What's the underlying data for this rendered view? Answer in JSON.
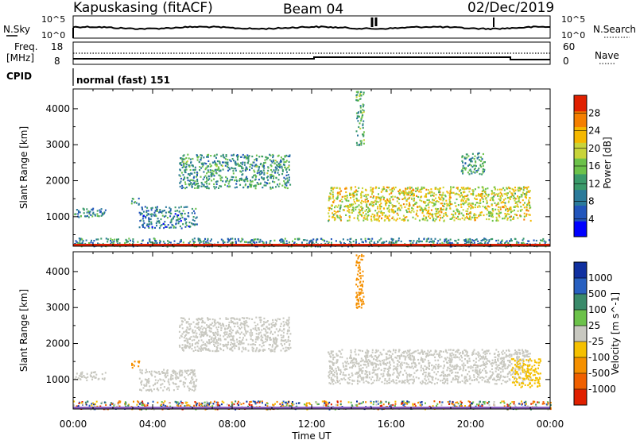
{
  "header": {
    "station": "Kapuskasing (fitACF)",
    "beam": "Beam 04",
    "date": "02/Dec/2019"
  },
  "noise_panel": {
    "left_label": "N.Sky",
    "right_label": "N.Search",
    "left_ticks": [
      "10^5",
      "10^0"
    ],
    "right_ticks": [
      "10^5",
      "10^0"
    ]
  },
  "freq_panel": {
    "left_label_1": "Freq.",
    "left_label_2": "[MHz]",
    "left_ticks": [
      "18",
      "8"
    ],
    "right_label": "Nave",
    "right_ticks": [
      "60",
      "0"
    ]
  },
  "cpid_panel": {
    "label": "CPID",
    "program": "normal (fast) 151"
  },
  "chart_data": [
    {
      "type": "heatmap",
      "title": "",
      "xlabel": "Time UT",
      "ylabel": "Slant Range [km]",
      "colorbar_label": "Power [dB]",
      "x_ticks": [
        "00:00",
        "04:00",
        "08:00",
        "12:00",
        "16:00",
        "20:00",
        "00:00"
      ],
      "x_range_hours": [
        0,
        24
      ],
      "y_ticks": [
        1000,
        2000,
        3000,
        4000
      ],
      "ylim": [
        180,
        4550
      ],
      "colorbar_ticks": [
        4,
        8,
        12,
        16,
        20,
        24,
        28
      ],
      "colorbar_range": [
        0,
        32
      ],
      "colors": [
        "#0000ff",
        "#2255bb",
        "#2b7a9a",
        "#3a9a6a",
        "#6cc24a",
        "#c8d43a",
        "#f5b800",
        "#f57f00",
        "#e02000"
      ],
      "regions": [
        {
          "t0": 0.0,
          "t1": 24.0,
          "r0": 190,
          "r1": 420,
          "value": 10
        },
        {
          "t0": 0.0,
          "t1": 1.6,
          "r0": 1000,
          "r1": 1250,
          "value": 10
        },
        {
          "t0": 2.9,
          "t1": 3.3,
          "r0": 1350,
          "r1": 1550,
          "value": 12
        },
        {
          "t0": 3.3,
          "t1": 6.2,
          "r0": 700,
          "r1": 1300,
          "value": 9
        },
        {
          "t0": 5.3,
          "t1": 10.9,
          "r0": 1800,
          "r1": 2750,
          "value": 12
        },
        {
          "t0": 12.8,
          "t1": 23.0,
          "r0": 900,
          "r1": 1850,
          "value": 20
        },
        {
          "t0": 14.2,
          "t1": 14.6,
          "r0": 3000,
          "r1": 4500,
          "value": 14
        },
        {
          "t0": 19.5,
          "t1": 20.7,
          "r0": 2200,
          "r1": 2800,
          "value": 12
        }
      ]
    },
    {
      "type": "heatmap",
      "title": "",
      "xlabel": "Time UT",
      "ylabel": "Slant Range [km]",
      "colorbar_label": "Velocity [m s^-1]",
      "x_ticks": [
        "00:00",
        "04:00",
        "08:00",
        "12:00",
        "16:00",
        "20:00",
        "00:00"
      ],
      "x_range_hours": [
        0,
        24
      ],
      "y_ticks": [
        1000,
        2000,
        3000,
        4000
      ],
      "ylim": [
        180,
        4550
      ],
      "colorbar_ticks": [
        "1000",
        "500",
        "100",
        "25",
        "-25",
        "-100",
        "-500",
        "-1000"
      ],
      "colors": [
        "#1030a0",
        "#2860c0",
        "#3a8a6a",
        "#6cc24a",
        "#c8c8c0",
        "#f5c000",
        "#f59000",
        "#f06000",
        "#e02000"
      ],
      "regions": [
        {
          "t0": 0.0,
          "t1": 24.0,
          "r0": 190,
          "r1": 420,
          "value": "mixed"
        },
        {
          "t0": 0.0,
          "t1": 1.6,
          "r0": 1000,
          "r1": 1250,
          "value": 0
        },
        {
          "t0": 2.9,
          "t1": 3.3,
          "r0": 1350,
          "r1": 1550,
          "value": -500
        },
        {
          "t0": 3.3,
          "t1": 6.2,
          "r0": 700,
          "r1": 1300,
          "value": 0
        },
        {
          "t0": 5.3,
          "t1": 10.9,
          "r0": 1800,
          "r1": 2750,
          "value": 0
        },
        {
          "t0": 12.8,
          "t1": 23.0,
          "r0": 900,
          "r1": 1850,
          "value": 0
        },
        {
          "t0": 22.0,
          "t1": 23.5,
          "r0": 800,
          "r1": 1600,
          "value": -100
        },
        {
          "t0": 14.2,
          "t1": 14.6,
          "r0": 3000,
          "r1": 4500,
          "value": -500
        }
      ]
    }
  ]
}
